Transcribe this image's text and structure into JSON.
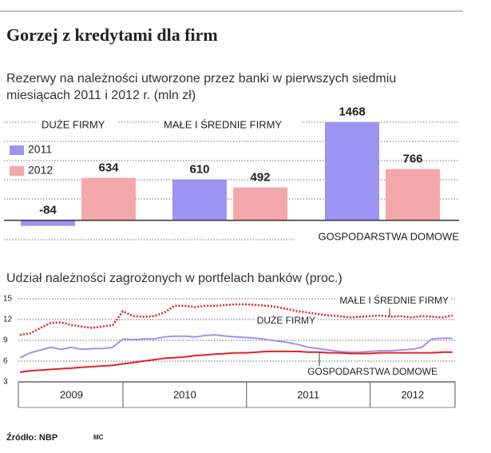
{
  "title": "Gorzej z kredytami dla firm",
  "source": "Źródło: NBP",
  "author": "MC",
  "chart_data": [
    {
      "type": "bar",
      "title": "Rezerwy na należności utworzone przez banki w pierwszych siedmiu miesiącach 2011 i 2012 r. (mln zł)",
      "categories": [
        "DUŻE FIRMY",
        "MAŁE I ŚREDNIE FIRMY",
        "GOSPODARSTWA DOMOWE"
      ],
      "series": [
        {
          "name": "2011",
          "color": "#9d93f2",
          "values": [
            -84,
            610,
            1468
          ]
        },
        {
          "name": "2012",
          "color": "#f5a8aa",
          "values": [
            634,
            492,
            766
          ]
        }
      ],
      "ylim": [
        -290,
        1620
      ],
      "grid": true
    },
    {
      "type": "line",
      "title": "Udział należności zagrożonych w portfelach banków (proc.)",
      "categories": [
        null,
        null,
        null,
        null,
        null,
        null,
        null,
        null,
        null,
        null,
        null,
        null,
        null,
        null,
        null,
        null,
        null,
        null,
        null,
        null,
        null,
        null,
        null,
        null,
        null,
        null,
        null,
        null,
        null,
        null,
        null,
        null,
        null,
        null,
        null,
        null,
        null,
        null,
        null,
        null,
        null,
        null,
        null
      ],
      "year_labels": [
        "2009",
        "2010",
        "2011",
        "2012"
      ],
      "series": [
        {
          "name": "MAŁE I ŚREDNIE FIRMY",
          "color": "#e3202b",
          "dash": "dotted",
          "values": [
            9.8,
            10.0,
            10.8,
            11.5,
            11.6,
            11.2,
            11.0,
            10.8,
            11.0,
            11.2,
            13.2,
            12.5,
            12.4,
            12.5,
            13.0,
            14.0,
            14.0,
            13.8,
            14.0,
            14.0,
            14.1,
            14.2,
            14.2,
            14.1,
            14.0,
            13.8,
            13.5,
            13.2,
            13.0,
            12.8,
            12.6,
            12.5,
            12.3,
            12.4,
            12.5,
            12.6,
            12.4,
            12.5,
            12.3,
            12.5,
            12.4,
            12.3,
            12.6
          ]
        },
        {
          "name": "DUŻE FIRMY",
          "color": "#9d93f2",
          "dash": "solid",
          "values": [
            6.5,
            7.2,
            7.6,
            8.0,
            7.7,
            8.0,
            7.7,
            7.8,
            7.8,
            8.0,
            9.2,
            9.1,
            9.2,
            9.2,
            9.5,
            9.6,
            9.6,
            9.5,
            9.7,
            9.8,
            9.6,
            9.5,
            9.4,
            9.3,
            9.1,
            8.9,
            8.7,
            8.4,
            8.0,
            7.8,
            7.6,
            7.4,
            7.3,
            7.3,
            7.4,
            7.5,
            7.5,
            7.6,
            7.7,
            8.0,
            9.2,
            9.3,
            9.3
          ]
        },
        {
          "name": "GOSPODARSTWA DOMOWE",
          "color": "#e3202b",
          "dash": "solid",
          "values": [
            4.4,
            4.6,
            4.7,
            4.8,
            4.9,
            5.0,
            5.1,
            5.2,
            5.3,
            5.4,
            5.6,
            5.8,
            6.0,
            6.2,
            6.4,
            6.5,
            6.6,
            6.8,
            6.9,
            7.0,
            7.1,
            7.2,
            7.2,
            7.3,
            7.4,
            7.4,
            7.4,
            7.4,
            7.3,
            7.3,
            7.2,
            7.2,
            7.1,
            7.1,
            7.1,
            7.2,
            7.2,
            7.2,
            7.2,
            7.2,
            7.2,
            7.3,
            7.3
          ]
        }
      ],
      "ylim": [
        3,
        15
      ],
      "yticks": [
        3,
        6,
        9,
        12,
        15
      ],
      "grid": true
    }
  ]
}
